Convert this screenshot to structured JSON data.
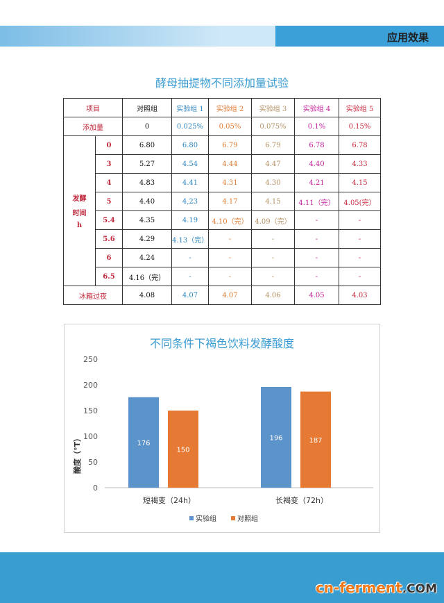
{
  "header": {
    "section": "应用效果"
  },
  "table": {
    "title": "酵母抽提物不同添加量试验",
    "headers": [
      "项目",
      "对照组",
      "实验组 1",
      "实验组 2",
      "实验组 3",
      "实验组 4",
      "实验组 5"
    ],
    "dose_label": "添加量",
    "doses": [
      "0",
      "0.025%",
      "0.05%",
      "0.075%",
      "0.1%",
      "0.15%"
    ],
    "time_label": [
      "发酵",
      "时间",
      "h"
    ],
    "rows": [
      {
        "t": "0",
        "v": [
          "6.80",
          "6.80",
          "6.79",
          "6.79",
          "6.78",
          "6.78"
        ]
      },
      {
        "t": "3",
        "v": [
          "5.27",
          "4.54",
          "4.44",
          "4.47",
          "4.40",
          "4.33"
        ]
      },
      {
        "t": "4",
        "v": [
          "4.83",
          "4.41",
          "4.31",
          "4.30",
          "4.21",
          "4.15"
        ]
      },
      {
        "t": "5",
        "v": [
          "4.40",
          "4,23",
          "4.17",
          "4.15",
          "4.11（完）",
          "4.05(完）"
        ]
      },
      {
        "t": "5.4",
        "v": [
          "4.35",
          "4.19",
          "4.10（完）",
          "4.09（完）",
          "-",
          "-"
        ]
      },
      {
        "t": "5.6",
        "v": [
          "4.29",
          "4.13（完）",
          "-",
          "-",
          "-",
          "-"
        ]
      },
      {
        "t": "6",
        "v": [
          "4.24",
          "-",
          "-",
          "-",
          "-",
          "-"
        ]
      },
      {
        "t": "6.5",
        "v": [
          "4.16（完）",
          "-",
          "-",
          "-",
          "-",
          "-"
        ]
      }
    ],
    "overnight_label": "冰箱过夜",
    "overnight": [
      "4.08",
      "4.07",
      "4.07",
      "4.06",
      "4.05",
      "4.03"
    ]
  },
  "chart_data": {
    "type": "bar",
    "title": "不同条件下褐色饮料发酵酸度",
    "ylabel": "酸度（°T）",
    "categories": [
      "短褐变（24h）",
      "长褐变（72h）"
    ],
    "series": [
      {
        "name": "实验组",
        "values": [
          176,
          196
        ],
        "color": "#5b93cb"
      },
      {
        "name": "对照组",
        "values": [
          150,
          187
        ],
        "color": "#e67a35"
      }
    ],
    "ylim": [
      0,
      250
    ],
    "yticks": [
      "0",
      "50",
      "100",
      "150",
      "200",
      "250"
    ],
    "legend": "bottom",
    "grid": false
  },
  "footer": {
    "logo_main": "cn-ferment",
    "logo_tld": ".COM"
  }
}
